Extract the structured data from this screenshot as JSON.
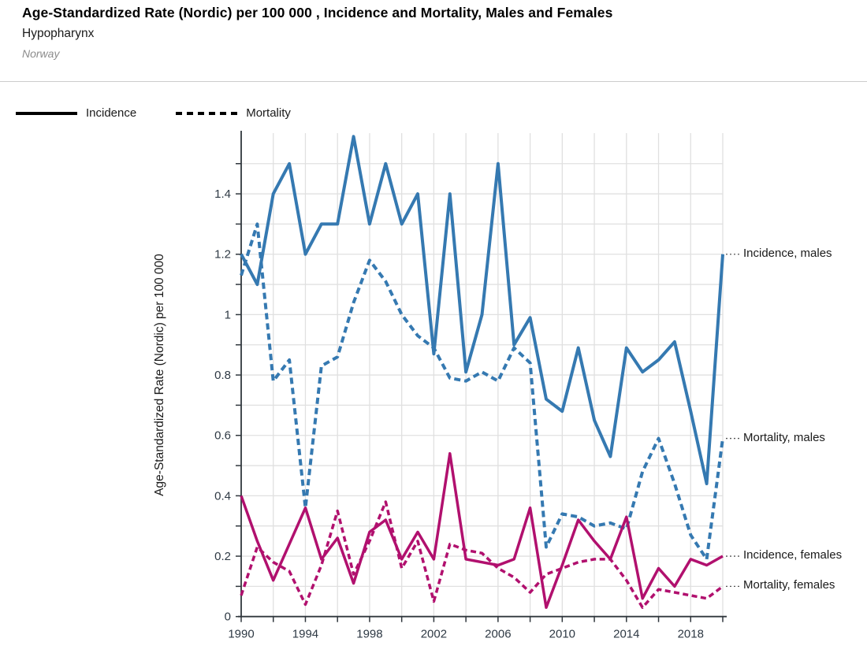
{
  "header": {
    "title": "Age-Standardized Rate (Nordic) per 100 000 , Incidence and Mortality, Males and Females",
    "subtitle": "Hypopharynx",
    "region": "Norway"
  },
  "legend": [
    {
      "label": "Incidence",
      "style": "solid"
    },
    {
      "label": "Mortality",
      "style": "dashed"
    }
  ],
  "colors": {
    "males": "#3579B1",
    "females": "#B1106E",
    "axis": "#30373d",
    "grid": "#e0e0e0",
    "leader": "#555555"
  },
  "chart_data": {
    "type": "line",
    "title": "Age-Standardized Rate (Nordic) per 100 000 , Incidence and Mortality, Males and Females",
    "subtitle": "Hypopharynx",
    "region": "Norway",
    "xlabel": "",
    "ylabel": "Age-Standardized Rate (Nordic) per 100 000",
    "x_start": 1990,
    "x_end": 2020,
    "ylim": [
      0,
      1.6
    ],
    "grid": true,
    "legend_position": "top-left",
    "x_tick_labels": [
      "1990",
      "1994",
      "1998",
      "2002",
      "2006",
      "2010",
      "2014",
      "2018"
    ],
    "x_ticks_every_years": 2,
    "y_axis_labels": [
      {
        "v": 0,
        "t": "0"
      },
      {
        "v": 0.2,
        "t": "0.2"
      },
      {
        "v": 0.4,
        "t": "0.4"
      },
      {
        "v": 0.6,
        "t": "0.6"
      },
      {
        "v": 0.8,
        "t": "0.8"
      },
      {
        "v": 1,
        "t": "1"
      },
      {
        "v": 1.2,
        "t": "1.2"
      },
      {
        "v": 1.4,
        "t": "1.4"
      }
    ],
    "years": [
      1990,
      1991,
      1992,
      1993,
      1994,
      1995,
      1996,
      1997,
      1998,
      1999,
      2000,
      2001,
      2002,
      2003,
      2004,
      2005,
      2006,
      2007,
      2008,
      2009,
      2010,
      2011,
      2012,
      2013,
      2014,
      2015,
      2016,
      2017,
      2018,
      2019,
      2020
    ],
    "series": [
      {
        "name": "Incidence, males",
        "legend": "Incidence",
        "sex": "males",
        "style": "solid",
        "color": "#3579B1",
        "values": [
          1.2,
          1.1,
          1.4,
          1.5,
          1.2,
          1.3,
          1.3,
          1.59,
          1.3,
          1.5,
          1.3,
          1.4,
          0.87,
          1.4,
          0.81,
          1.0,
          1.5,
          0.9,
          0.99,
          0.72,
          0.68,
          0.89,
          0.65,
          0.53,
          0.89,
          0.81,
          0.85,
          0.91,
          0.68,
          0.44,
          1.2
        ]
      },
      {
        "name": "Mortality, males",
        "legend": "Mortality",
        "sex": "males",
        "style": "dashed",
        "color": "#3579B1",
        "values": [
          1.13,
          1.3,
          0.78,
          0.85,
          0.36,
          0.83,
          0.86,
          1.04,
          1.18,
          1.11,
          1.0,
          0.93,
          0.89,
          0.79,
          0.78,
          0.81,
          0.78,
          0.89,
          0.84,
          0.23,
          0.34,
          0.33,
          0.3,
          0.31,
          0.29,
          0.48,
          0.59,
          0.44,
          0.27,
          0.19,
          0.59
        ]
      },
      {
        "name": "Incidence, females",
        "legend": "Incidence",
        "sex": "females",
        "style": "solid",
        "color": "#B1106E",
        "values": [
          0.4,
          0.25,
          0.12,
          0.24,
          0.36,
          0.19,
          0.26,
          0.11,
          0.28,
          0.32,
          0.19,
          0.28,
          0.19,
          0.54,
          0.19,
          0.18,
          0.17,
          0.19,
          0.36,
          0.03,
          0.17,
          0.32,
          0.25,
          0.19,
          0.33,
          0.06,
          0.16,
          0.1,
          0.19,
          0.17,
          0.2
        ]
      },
      {
        "name": "Mortality, females",
        "legend": "Mortality",
        "sex": "females",
        "style": "dashed",
        "color": "#B1106E",
        "values": [
          0.07,
          0.23,
          0.18,
          0.15,
          0.04,
          0.17,
          0.35,
          0.14,
          0.25,
          0.38,
          0.16,
          0.25,
          0.05,
          0.24,
          0.22,
          0.21,
          0.16,
          0.13,
          0.08,
          0.14,
          0.16,
          0.18,
          0.19,
          0.19,
          0.12,
          0.03,
          0.09,
          0.08,
          0.07,
          0.06,
          0.1
        ]
      }
    ]
  }
}
